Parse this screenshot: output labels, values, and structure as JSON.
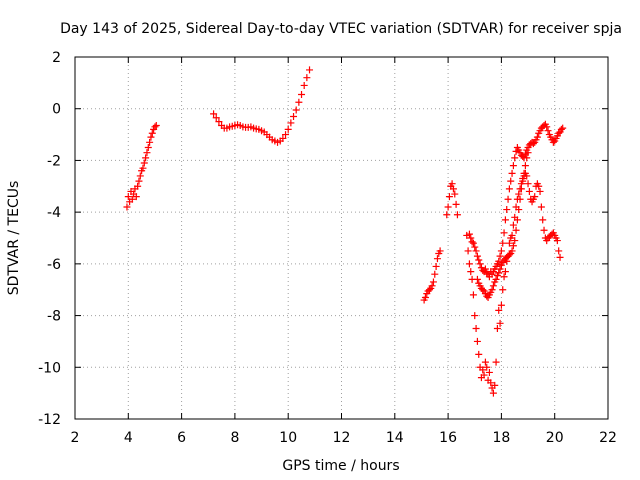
{
  "chart_data": {
    "type": "scatter",
    "title": "Day 143 of 2025, Sidereal Day-to-day VTEC variation (SDTVAR) for receiver spja",
    "xlabel": "GPS time / hours",
    "ylabel": "SDTVAR / TECUs",
    "xlim": [
      2,
      22
    ],
    "ylim": [
      -12,
      2
    ],
    "xticks": [
      2,
      4,
      6,
      8,
      10,
      12,
      14,
      16,
      18,
      20,
      22
    ],
    "yticks": [
      -12,
      -10,
      -8,
      -6,
      -4,
      -2,
      0,
      2
    ],
    "grid": true,
    "marker": "plus",
    "color": "#ff0000",
    "segments": [
      {
        "points": [
          [
            3.95,
            -3.8
          ],
          [
            4.0,
            -3.4
          ],
          [
            4.05,
            -3.6
          ],
          [
            4.1,
            -3.2
          ],
          [
            4.15,
            -3.5
          ],
          [
            4.2,
            -3.3
          ],
          [
            4.25,
            -3.1
          ],
          [
            4.3,
            -3.4
          ],
          [
            4.35,
            -3.0
          ],
          [
            4.4,
            -2.8
          ],
          [
            4.45,
            -2.6
          ],
          [
            4.5,
            -2.4
          ],
          [
            4.55,
            -2.3
          ],
          [
            4.6,
            -2.1
          ],
          [
            4.65,
            -1.9
          ],
          [
            4.7,
            -1.7
          ],
          [
            4.75,
            -1.5
          ],
          [
            4.8,
            -1.3
          ],
          [
            4.85,
            -1.1
          ],
          [
            4.9,
            -0.95
          ],
          [
            4.95,
            -0.8
          ],
          [
            5.0,
            -0.7
          ],
          [
            5.05,
            -0.65
          ]
        ]
      },
      {
        "points": [
          [
            7.2,
            -0.2
          ],
          [
            7.3,
            -0.35
          ],
          [
            7.4,
            -0.5
          ],
          [
            7.5,
            -0.65
          ],
          [
            7.6,
            -0.75
          ],
          [
            7.7,
            -0.75
          ],
          [
            7.8,
            -0.7
          ],
          [
            7.9,
            -0.68
          ],
          [
            8.0,
            -0.65
          ],
          [
            8.1,
            -0.62
          ],
          [
            8.2,
            -0.65
          ],
          [
            8.3,
            -0.7
          ],
          [
            8.4,
            -0.72
          ],
          [
            8.5,
            -0.72
          ],
          [
            8.6,
            -0.7
          ],
          [
            8.7,
            -0.75
          ],
          [
            8.8,
            -0.78
          ],
          [
            8.9,
            -0.8
          ],
          [
            9.0,
            -0.85
          ],
          [
            9.1,
            -0.9
          ],
          [
            9.2,
            -1.0
          ],
          [
            9.3,
            -1.1
          ],
          [
            9.4,
            -1.2
          ],
          [
            9.5,
            -1.25
          ],
          [
            9.6,
            -1.3
          ],
          [
            9.7,
            -1.25
          ],
          [
            9.8,
            -1.15
          ],
          [
            9.9,
            -1.0
          ],
          [
            10.0,
            -0.8
          ],
          [
            10.1,
            -0.55
          ],
          [
            10.2,
            -0.3
          ],
          [
            10.3,
            -0.05
          ],
          [
            10.4,
            0.25
          ],
          [
            10.5,
            0.55
          ],
          [
            10.6,
            0.9
          ],
          [
            10.7,
            1.2
          ],
          [
            10.8,
            1.5
          ]
        ]
      },
      {
        "points": [
          [
            15.1,
            -7.4
          ],
          [
            15.15,
            -7.3
          ],
          [
            15.2,
            -7.15
          ],
          [
            15.25,
            -7.05
          ],
          [
            15.3,
            -7.0
          ],
          [
            15.35,
            -6.95
          ],
          [
            15.4,
            -6.85
          ],
          [
            15.45,
            -6.7
          ],
          [
            15.5,
            -6.4
          ],
          [
            15.55,
            -6.1
          ],
          [
            15.6,
            -5.8
          ],
          [
            15.65,
            -5.6
          ],
          [
            15.7,
            -5.5
          ]
        ]
      },
      {
        "points": [
          [
            15.95,
            -4.1
          ],
          [
            16.0,
            -3.8
          ],
          [
            16.05,
            -3.4
          ],
          [
            16.1,
            -3.0
          ],
          [
            16.15,
            -2.9
          ],
          [
            16.2,
            -3.1
          ],
          [
            16.25,
            -3.3
          ],
          [
            16.3,
            -3.7
          ],
          [
            16.35,
            -4.1
          ]
        ]
      },
      {
        "points": [
          [
            16.7,
            -4.9
          ],
          [
            16.75,
            -5.5
          ],
          [
            16.8,
            -6.0
          ],
          [
            16.85,
            -6.3
          ],
          [
            16.9,
            -6.6
          ],
          [
            16.95,
            -7.2
          ],
          [
            17.0,
            -8.0
          ],
          [
            17.05,
            -8.5
          ],
          [
            17.1,
            -9.0
          ],
          [
            17.15,
            -9.5
          ],
          [
            17.2,
            -10.0
          ],
          [
            17.25,
            -10.4
          ],
          [
            17.3,
            -10.1
          ],
          [
            17.35,
            -10.3
          ],
          [
            17.4,
            -9.8
          ],
          [
            17.45,
            -10.0
          ],
          [
            17.5,
            -10.5
          ],
          [
            17.55,
            -10.2
          ],
          [
            17.6,
            -10.6
          ],
          [
            17.65,
            -10.8
          ],
          [
            17.7,
            -11.0
          ],
          [
            17.75,
            -10.7
          ],
          [
            17.8,
            -9.8
          ],
          [
            17.85,
            -8.5
          ],
          [
            17.9,
            -7.8
          ],
          [
            17.95,
            -8.3
          ],
          [
            18.0,
            -7.6
          ],
          [
            18.05,
            -7.0
          ],
          [
            18.1,
            -6.5
          ],
          [
            18.15,
            -6.3
          ],
          [
            18.2,
            -5.9
          ],
          [
            18.25,
            -5.7
          ],
          [
            18.3,
            -5.2
          ],
          [
            18.35,
            -5.0
          ],
          [
            18.4,
            -4.9
          ],
          [
            18.45,
            -4.5
          ],
          [
            18.5,
            -4.2
          ],
          [
            18.55,
            -3.8
          ],
          [
            18.6,
            -3.5
          ],
          [
            18.65,
            -3.3
          ],
          [
            18.7,
            -3.1
          ],
          [
            18.75,
            -2.9
          ],
          [
            18.8,
            -2.7
          ],
          [
            18.85,
            -2.6
          ],
          [
            18.9,
            -2.5
          ],
          [
            18.95,
            -2.6
          ],
          [
            19.0,
            -2.9
          ],
          [
            19.05,
            -3.2
          ],
          [
            19.1,
            -3.5
          ],
          [
            19.15,
            -3.6
          ],
          [
            19.2,
            -3.5
          ],
          [
            19.25,
            -3.4
          ],
          [
            19.3,
            -3.0
          ],
          [
            19.35,
            -2.9
          ],
          [
            19.4,
            -3.0
          ],
          [
            19.45,
            -3.2
          ],
          [
            19.5,
            -3.8
          ],
          [
            19.55,
            -4.3
          ],
          [
            19.6,
            -4.7
          ],
          [
            19.65,
            -5.0
          ],
          [
            19.7,
            -5.1
          ],
          [
            19.75,
            -5.0
          ],
          [
            19.8,
            -4.95
          ],
          [
            19.85,
            -4.9
          ],
          [
            19.9,
            -4.85
          ],
          [
            19.95,
            -4.8
          ],
          [
            20.0,
            -4.9
          ],
          [
            20.05,
            -5.0
          ],
          [
            20.1,
            -5.1
          ],
          [
            20.15,
            -5.5
          ],
          [
            20.2,
            -5.75
          ]
        ]
      },
      {
        "points": [
          [
            16.8,
            -4.85
          ],
          [
            16.85,
            -5.0
          ],
          [
            16.9,
            -5.15
          ],
          [
            16.95,
            -5.2
          ],
          [
            17.0,
            -5.35
          ],
          [
            17.05,
            -5.5
          ],
          [
            17.1,
            -5.7
          ],
          [
            17.15,
            -5.85
          ],
          [
            17.2,
            -6.0
          ],
          [
            17.25,
            -6.15
          ],
          [
            17.3,
            -6.25
          ],
          [
            17.35,
            -6.3
          ],
          [
            17.4,
            -6.2
          ],
          [
            17.45,
            -6.35
          ],
          [
            17.5,
            -6.4
          ],
          [
            17.55,
            -6.5
          ],
          [
            17.6,
            -6.3
          ],
          [
            17.65,
            -6.4
          ],
          [
            17.7,
            -6.3
          ],
          [
            17.75,
            -6.2
          ],
          [
            17.8,
            -6.1
          ],
          [
            17.85,
            -6.0
          ],
          [
            17.9,
            -5.9
          ],
          [
            17.95,
            -5.7
          ],
          [
            18.0,
            -5.5
          ],
          [
            18.05,
            -5.2
          ],
          [
            18.1,
            -4.8
          ],
          [
            18.15,
            -4.3
          ],
          [
            18.2,
            -3.9
          ],
          [
            18.25,
            -3.5
          ],
          [
            18.3,
            -3.1
          ],
          [
            18.35,
            -2.8
          ],
          [
            18.4,
            -2.5
          ],
          [
            18.45,
            -2.2
          ],
          [
            18.5,
            -1.9
          ],
          [
            18.55,
            -1.65
          ],
          [
            18.6,
            -1.5
          ],
          [
            18.65,
            -1.6
          ],
          [
            18.7,
            -1.7
          ],
          [
            18.75,
            -1.8
          ],
          [
            18.8,
            -1.85
          ],
          [
            18.85,
            -1.9
          ],
          [
            18.9,
            -1.75
          ],
          [
            18.95,
            -1.6
          ],
          [
            19.0,
            -1.5
          ],
          [
            19.05,
            -1.4
          ],
          [
            19.1,
            -1.35
          ],
          [
            19.15,
            -1.3
          ],
          [
            19.2,
            -1.35
          ],
          [
            19.25,
            -1.3
          ],
          [
            19.3,
            -1.2
          ],
          [
            19.35,
            -1.1
          ],
          [
            19.4,
            -0.95
          ],
          [
            19.45,
            -0.85
          ],
          [
            19.5,
            -0.75
          ],
          [
            19.55,
            -0.7
          ],
          [
            19.6,
            -0.65
          ],
          [
            19.65,
            -0.6
          ],
          [
            19.7,
            -0.7
          ],
          [
            19.75,
            -0.85
          ],
          [
            19.8,
            -1.0
          ],
          [
            19.85,
            -1.1
          ],
          [
            19.9,
            -1.2
          ],
          [
            19.95,
            -1.3
          ],
          [
            20.0,
            -1.25
          ],
          [
            20.05,
            -1.15
          ],
          [
            20.1,
            -1.05
          ],
          [
            20.15,
            -0.95
          ],
          [
            20.2,
            -0.9
          ],
          [
            20.25,
            -0.8
          ],
          [
            20.3,
            -0.75
          ]
        ]
      },
      {
        "points": [
          [
            17.1,
            -6.6
          ],
          [
            17.15,
            -6.75
          ],
          [
            17.2,
            -6.85
          ],
          [
            17.25,
            -6.95
          ],
          [
            17.3,
            -7.0
          ],
          [
            17.35,
            -7.05
          ],
          [
            17.4,
            -7.15
          ],
          [
            17.45,
            -7.25
          ],
          [
            17.5,
            -7.3
          ],
          [
            17.55,
            -7.2
          ],
          [
            17.6,
            -7.1
          ],
          [
            17.65,
            -7.0
          ],
          [
            17.7,
            -6.85
          ],
          [
            17.75,
            -6.7
          ],
          [
            17.8,
            -6.6
          ],
          [
            17.85,
            -6.45
          ],
          [
            17.9,
            -6.35
          ],
          [
            17.95,
            -6.2
          ],
          [
            18.0,
            -6.05
          ],
          [
            18.05,
            -5.95
          ],
          [
            18.1,
            -5.85
          ],
          [
            18.15,
            -5.8
          ],
          [
            18.2,
            -5.75
          ],
          [
            18.25,
            -5.7
          ],
          [
            18.3,
            -5.65
          ],
          [
            18.35,
            -5.6
          ],
          [
            18.4,
            -5.5
          ],
          [
            18.45,
            -5.3
          ],
          [
            18.5,
            -5.1
          ],
          [
            18.55,
            -4.7
          ],
          [
            18.6,
            -4.3
          ],
          [
            18.65,
            -3.9
          ],
          [
            18.7,
            -3.5
          ],
          [
            18.75,
            -3.1
          ],
          [
            18.8,
            -2.8
          ],
          [
            18.85,
            -2.5
          ],
          [
            18.9,
            -2.2
          ],
          [
            18.95,
            -1.9
          ],
          [
            19.0,
            -1.7
          ]
        ]
      }
    ]
  }
}
